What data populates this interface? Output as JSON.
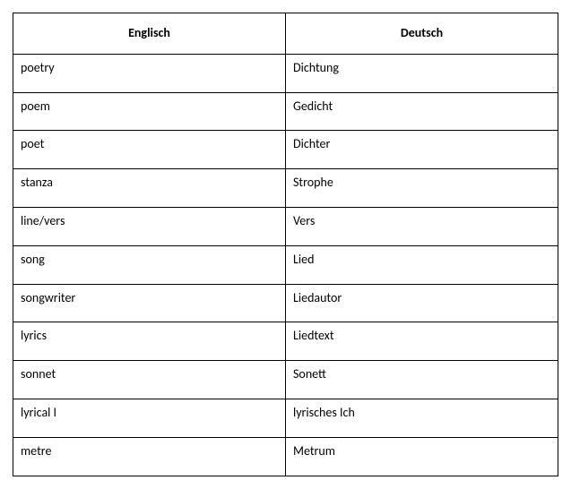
{
  "vocab_table": {
    "type": "table",
    "columns": [
      "Englisch",
      "Deutsch"
    ],
    "rows": [
      [
        "poetry",
        "Dichtung"
      ],
      [
        "poem",
        "Gedicht"
      ],
      [
        "poet",
        "Dichter"
      ],
      [
        "stanza",
        "Strophe"
      ],
      [
        "line/vers",
        "Vers"
      ],
      [
        "song",
        "Lied"
      ],
      [
        "songwriter",
        "Liedautor"
      ],
      [
        "lyrics",
        "Liedtext"
      ],
      [
        "sonnet",
        "Sonett"
      ],
      [
        "lyrical I",
        "lyrisches Ich"
      ],
      [
        "metre",
        "Metrum"
      ]
    ],
    "border_color": "#000000",
    "background_color": "#ffffff",
    "header_fontsize": 14,
    "header_fontweight": "bold",
    "cell_fontsize": 14,
    "cell_fontweight": "normal",
    "font_family": "Calibri",
    "column_widths": [
      "50%",
      "50%"
    ],
    "header_align": "center",
    "cell_align": "left"
  }
}
